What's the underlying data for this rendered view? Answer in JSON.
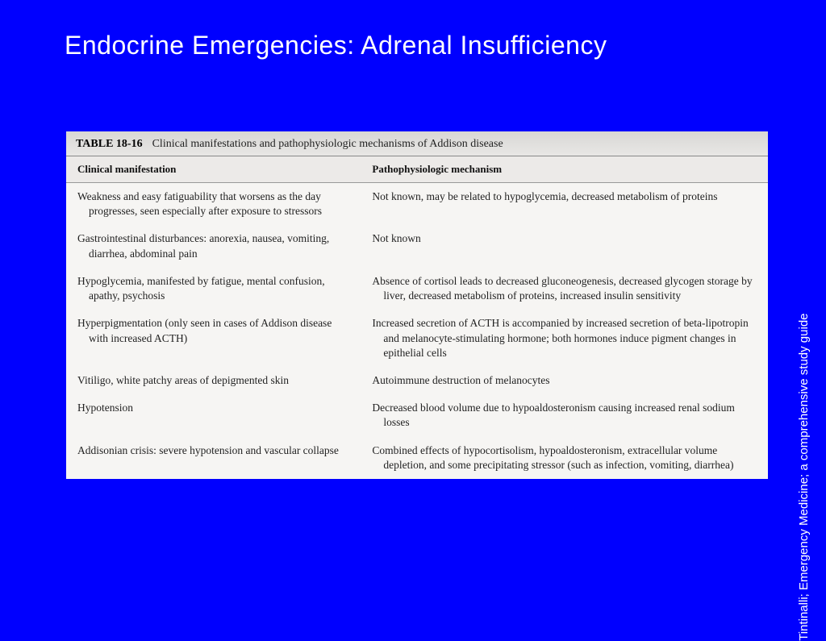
{
  "slide": {
    "title": "Endocrine Emergencies: Adrenal Insufficiency",
    "citation": "Tintinalli; Emergency Medicine; a comprehensive study guide",
    "background_color": "#0000ff",
    "title_color": "#ffffff",
    "title_fontsize": 32
  },
  "table": {
    "number": "TABLE 18-16",
    "caption": "Clinical manifestations and pathophysiologic mechanisms of Addison disease",
    "background_color": "#f4f3f1",
    "header_bg": "#d8d7d5",
    "border_color": "#999999",
    "font_family": "Georgia",
    "body_fontsize": 13.5,
    "header_fontsize": 13,
    "columns": [
      {
        "label": "Clinical manifestation",
        "width_pct": 42
      },
      {
        "label": "Pathophysiologic mechanism",
        "width_pct": 58
      }
    ],
    "rows": [
      {
        "manifestation": "Weakness and easy fatiguability that worsens as the day progresses, seen especially after exposure to stressors",
        "mechanism": "Not known, may be related to hypoglycemia, decreased metabolism of proteins"
      },
      {
        "manifestation": "Gastrointestinal disturbances: anorexia, nausea, vomiting, diarrhea, abdominal pain",
        "mechanism": "Not known"
      },
      {
        "manifestation": "Hypoglycemia, manifested by fatigue, mental confusion, apathy, psychosis",
        "mechanism": "Absence of cortisol leads to decreased gluconeogenesis, decreased glycogen storage by liver, decreased metabolism of proteins, increased insulin sensitivity"
      },
      {
        "manifestation": "Hyperpigmentation (only seen in cases of Addison disease with increased ACTH)",
        "mechanism": "Increased secretion of ACTH is accompanied by increased secretion of beta-lipotropin and melanocyte-stimulating hormone; both hormones induce pigment changes in epithelial cells"
      },
      {
        "manifestation": "Vitiligo, white patchy areas of depigmented skin",
        "mechanism": "Autoimmune destruction of melanocytes"
      },
      {
        "manifestation": "Hypotension",
        "mechanism": "Decreased blood volume due to hypoaldosteronism causing increased renal sodium losses"
      },
      {
        "manifestation": "Addisonian crisis: severe hypotension and vascular collapse",
        "mechanism": "Combined effects of hypocortisolism, hypoaldosteronism, extracellular volume depletion, and some precipitating stressor (such as infection, vomiting, diarrhea)"
      }
    ]
  }
}
